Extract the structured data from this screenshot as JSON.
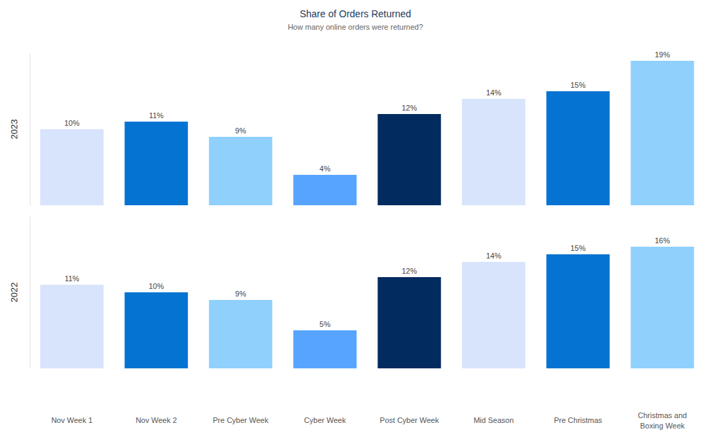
{
  "chart_data": {
    "type": "bar",
    "title": "Share of Orders Returned",
    "subtitle": "How many online orders were returned?",
    "categories": [
      "Nov Week 1",
      "Nov Week 2",
      "Pre Cyber Week",
      "Cyber Week",
      "Post Cyber Week",
      "Mid Season",
      "Pre Christmas",
      "Christmas and Boxing Week"
    ],
    "colors": [
      "#d7e4fb",
      "#0573d1",
      "#8fd0fd",
      "#57a4ff",
      "#022b60",
      "#d7e4fb",
      "#0573d1",
      "#8fd0fd"
    ],
    "series": [
      {
        "name": "2023",
        "values": [
          10,
          11,
          9,
          4,
          12,
          14,
          15,
          19
        ],
        "value_labels": [
          "10%",
          "11%",
          "9%",
          "4%",
          "12%",
          "14%",
          "15%",
          "19%"
        ]
      },
      {
        "name": "2022",
        "values": [
          11,
          10,
          9,
          5,
          12,
          14,
          15,
          16
        ],
        "value_labels": [
          "11%",
          "10%",
          "9%",
          "5%",
          "12%",
          "14%",
          "15%",
          "16%"
        ]
      }
    ],
    "ylim": [
      0,
      20
    ],
    "yticks": [],
    "data_labels": true,
    "tick_labels": "x"
  }
}
